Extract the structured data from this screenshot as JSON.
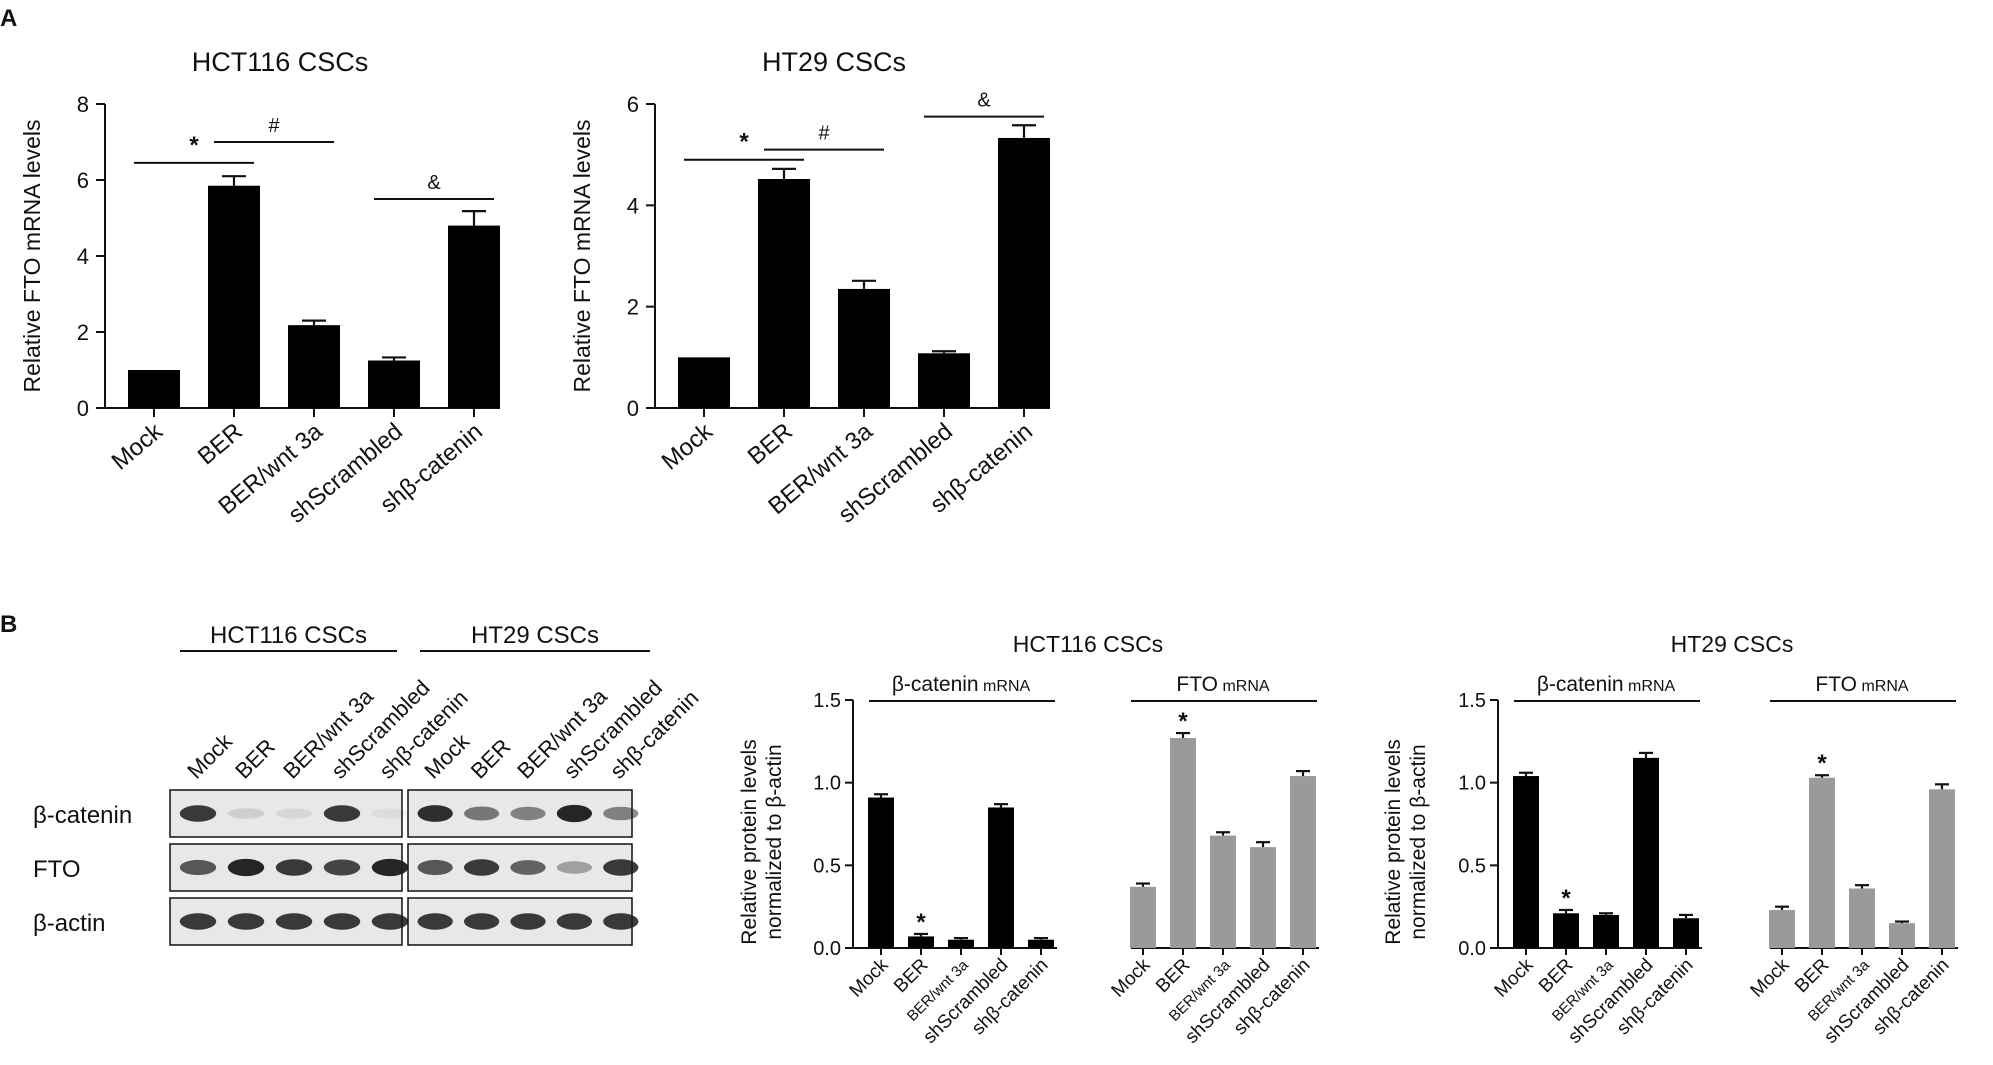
{
  "panels": {
    "A": "A",
    "B": "B"
  },
  "colors": {
    "black_bar": "#000000",
    "gray_bar": "#9a9a9a",
    "blot_bg": "#e8e8e8",
    "band": "#1a1a1a"
  },
  "chart_data": [
    {
      "id": "A-HCT116",
      "type": "bar",
      "title": "HCT116  CSCs",
      "ylabel": "Relative FTO mRNA levels",
      "ylim": [
        0,
        8
      ],
      "yticks": [
        "0",
        "2",
        "4",
        "6",
        "8"
      ],
      "categories": [
        "Mock",
        "BER",
        "BER/wnt 3a",
        "shScrambled",
        "shβ-catenin"
      ],
      "values": [
        1.0,
        5.85,
        2.18,
        1.25,
        4.8
      ],
      "errors": [
        0.0,
        0.25,
        0.12,
        0.08,
        0.38
      ],
      "annotations": [
        {
          "symbol": "*",
          "from": 0,
          "to": 1,
          "y": 6.45
        },
        {
          "symbol": "#",
          "from": 1,
          "to": 2,
          "y": 7.0
        },
        {
          "symbol": "&",
          "from": 3,
          "to": 4,
          "y": 5.5
        }
      ]
    },
    {
      "id": "A-HT29",
      "type": "bar",
      "title": "HT29  CSCs",
      "ylabel": "Relative FTO mRNA levels",
      "ylim": [
        0,
        6
      ],
      "yticks": [
        "0",
        "2",
        "4",
        "6"
      ],
      "categories": [
        "Mock",
        "BER",
        "BER/wnt 3a",
        "shScrambled",
        "shβ-catenin"
      ],
      "values": [
        1.0,
        4.52,
        2.35,
        1.08,
        5.33
      ],
      "errors": [
        0.0,
        0.2,
        0.16,
        0.04,
        0.25
      ],
      "annotations": [
        {
          "symbol": "*",
          "from": 0,
          "to": 1,
          "y": 4.9
        },
        {
          "symbol": "#",
          "from": 1,
          "to": 2,
          "y": 5.1
        },
        {
          "symbol": "&",
          "from": 3,
          "to": 4,
          "y": 5.75
        }
      ]
    },
    {
      "id": "B-HCT116",
      "type": "bar",
      "title": "HCT116 CSCs",
      "ylabel": [
        "Relative protein levels",
        "normalized to β-actin"
      ],
      "ylim": [
        0,
        1.5
      ],
      "yticks": [
        "0.0",
        "0.5",
        "1.0",
        "1.5"
      ],
      "groups": [
        {
          "label": "β-catenin",
          "label_suffix": "mRNA",
          "color": "black",
          "categories": [
            "Mock",
            "BER",
            "BER/wnt 3a",
            "shScrambled",
            "shβ-catenin"
          ],
          "values": [
            0.91,
            0.07,
            0.05,
            0.85,
            0.05
          ],
          "errors": [
            0.02,
            0.015,
            0.01,
            0.02,
            0.01
          ],
          "stars": [
            1
          ]
        },
        {
          "label": "FTO",
          "label_suffix": "mRNA",
          "color": "gray",
          "categories": [
            "Mock",
            "BER",
            "BER/wnt 3a",
            "shScrambled",
            "shβ-catenin"
          ],
          "values": [
            0.37,
            1.27,
            0.68,
            0.61,
            1.04
          ],
          "errors": [
            0.02,
            0.03,
            0.02,
            0.03,
            0.03
          ],
          "stars": [
            1
          ]
        }
      ]
    },
    {
      "id": "B-HT29",
      "type": "bar",
      "title": "HT29 CSCs",
      "ylabel": [
        "Relative protein levels",
        "normalized to β-actin"
      ],
      "ylim": [
        0,
        1.5
      ],
      "yticks": [
        "0.0",
        "0.5",
        "1.0",
        "1.5"
      ],
      "groups": [
        {
          "label": "β-catenin",
          "label_suffix": "mRNA",
          "color": "black",
          "categories": [
            "Mock",
            "BER",
            "BER/wnt 3a",
            "shScrambled",
            "shβ-catenin"
          ],
          "values": [
            1.04,
            0.21,
            0.2,
            1.15,
            0.18
          ],
          "errors": [
            0.02,
            0.02,
            0.01,
            0.03,
            0.02
          ],
          "stars": [
            1
          ]
        },
        {
          "label": "FTO",
          "label_suffix": "mRNA",
          "color": "gray",
          "categories": [
            "Mock",
            "BER",
            "BER/wnt 3a",
            "shScrambled",
            "shβ-catenin"
          ],
          "values": [
            0.23,
            1.03,
            0.36,
            0.15,
            0.96
          ],
          "errors": [
            0.02,
            0.015,
            0.02,
            0.01,
            0.03
          ],
          "stars": [
            1
          ]
        }
      ]
    }
  ],
  "blot": {
    "groups": [
      "HCT116 CSCs",
      "HT29 CSCs"
    ],
    "lanes": [
      "Mock",
      "BER",
      "BER/wnt 3a",
      "shScrambled",
      "shβ-catenin"
    ],
    "rows": [
      "β-catenin",
      "FTO",
      "β-actin"
    ],
    "band_intensity": {
      "HCT116 CSCs": [
        [
          0.85,
          0.12,
          0.08,
          0.85,
          0.06
        ],
        [
          0.7,
          0.95,
          0.85,
          0.8,
          0.95
        ],
        [
          0.85,
          0.85,
          0.85,
          0.85,
          0.85
        ]
      ],
      "HT29 CSCs": [
        [
          0.9,
          0.55,
          0.5,
          0.95,
          0.5
        ],
        [
          0.7,
          0.85,
          0.65,
          0.35,
          0.85
        ],
        [
          0.85,
          0.85,
          0.85,
          0.85,
          0.85
        ]
      ]
    }
  }
}
